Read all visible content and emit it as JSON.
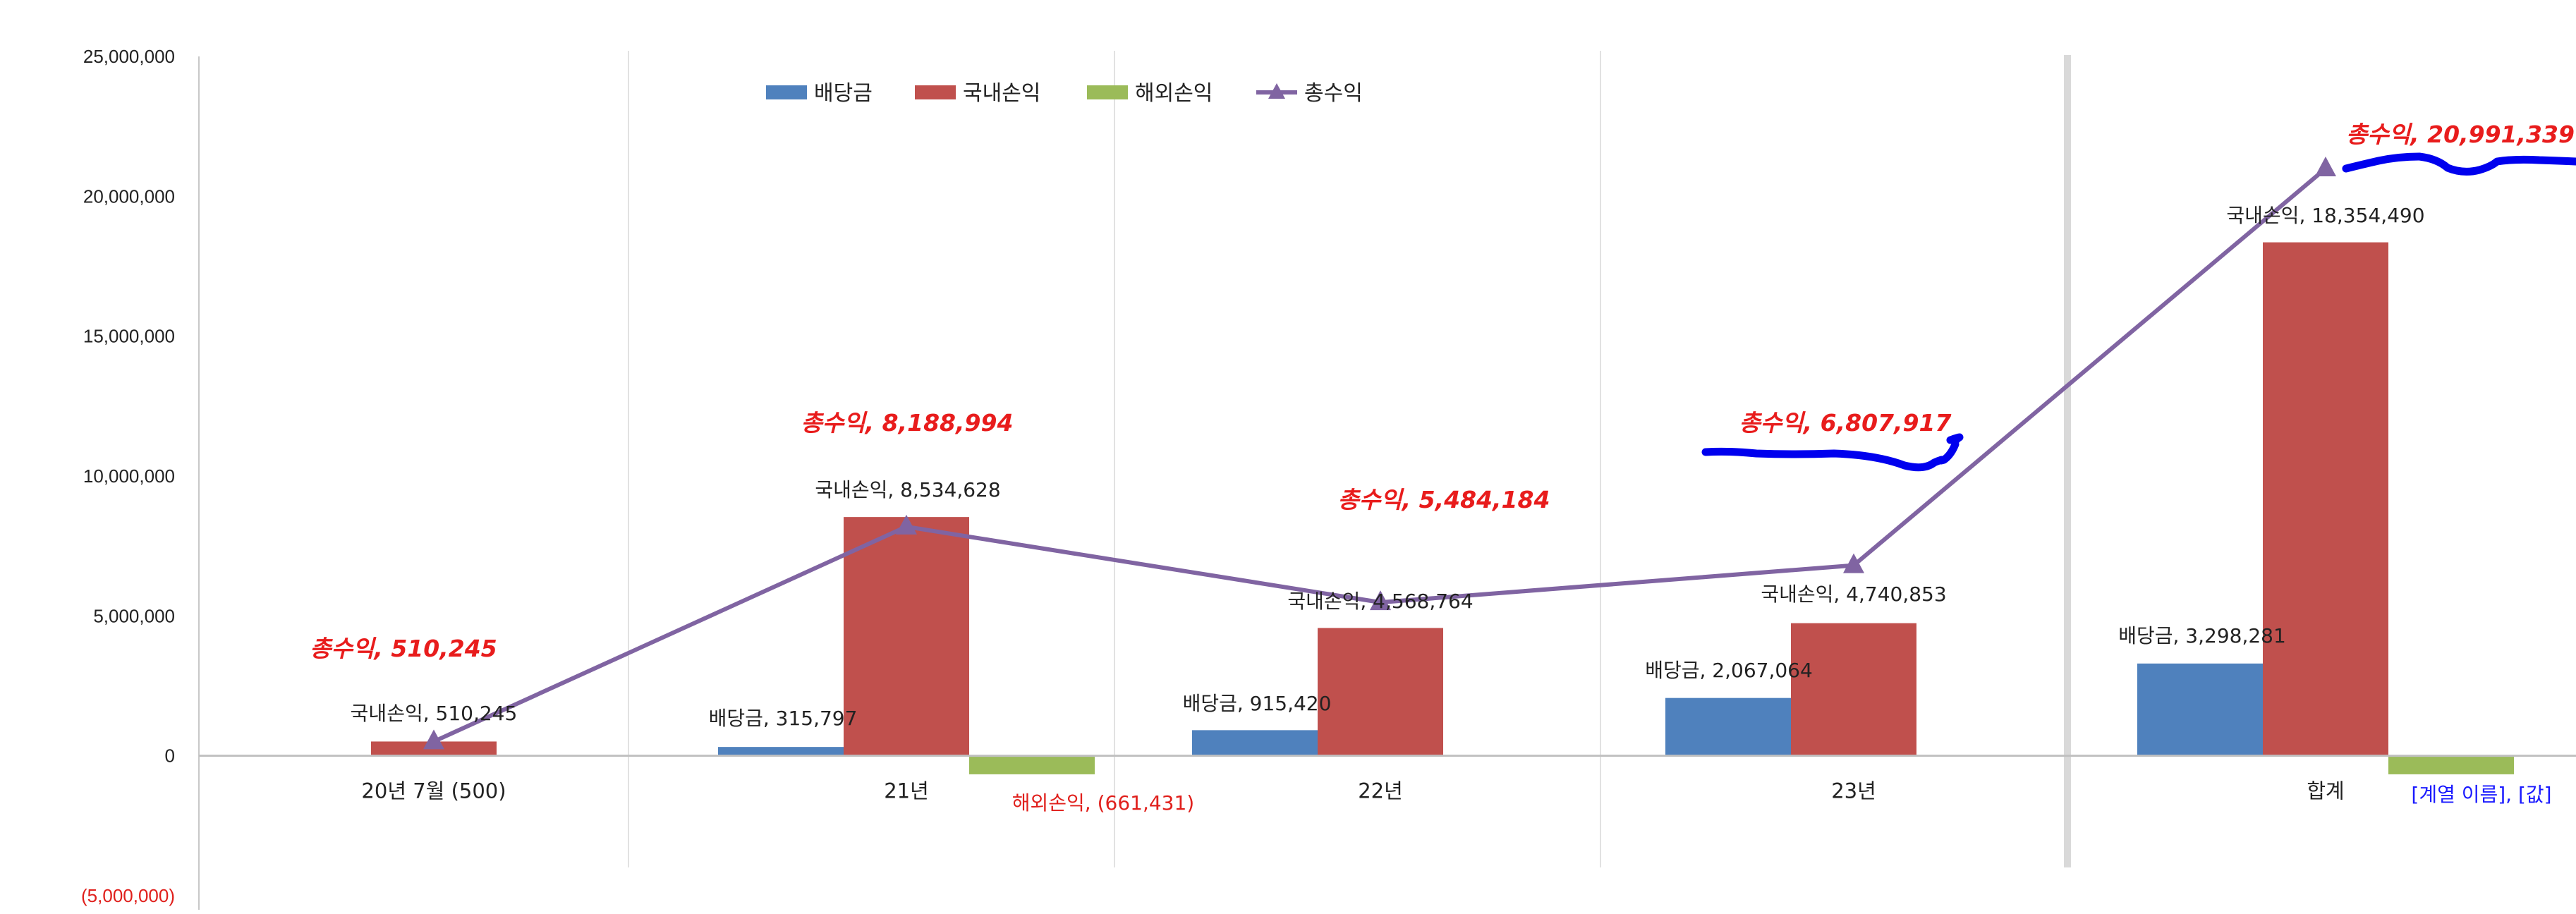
{
  "chart_data": {
    "type": "bar",
    "categories": [
      "20년 7월 (500)",
      "21년",
      "22년",
      "23년",
      "합계"
    ],
    "series": [
      {
        "name": "배당금",
        "type": "bar",
        "color": "#4f81bd",
        "values": [
          0,
          315797,
          915420,
          2067064,
          3298281
        ]
      },
      {
        "name": "국내손익",
        "type": "bar",
        "color": "#c0504d",
        "values": [
          510245,
          8534628,
          4568764,
          4740853,
          18354490
        ]
      },
      {
        "name": "해외손익",
        "type": "bar",
        "color": "#9bbb59",
        "values": [
          0,
          -661431,
          0,
          0,
          -661431
        ]
      },
      {
        "name": "총수익",
        "type": "line",
        "color": "#8064a2",
        "values": [
          510245,
          8188994,
          5484184,
          6807917,
          20991339
        ]
      }
    ],
    "ylim": [
      -5000000,
      25000000
    ],
    "yticks": [
      -5000000,
      0,
      5000000,
      10000000,
      15000000,
      20000000,
      25000000
    ],
    "ytick_labels": [
      "(5,000,000)",
      "0",
      "5,000,000",
      "10,000,000",
      "15,000,000",
      "20,000,000",
      "25,000,000"
    ],
    "legend": [
      "배당금",
      "국내손익",
      "해외손익",
      "총수익"
    ],
    "legend_position": "top-center",
    "title": "",
    "xlabel": "",
    "ylabel": "",
    "grid": "vertical category separators",
    "data_labels": [
      {
        "series": 1,
        "index": 0,
        "text": "국내손익, 510,245"
      },
      {
        "series": 1,
        "index": 1,
        "text": "국내손익, 8,534,628"
      },
      {
        "series": 1,
        "index": 2,
        "text": "국내손익, 4,568,764"
      },
      {
        "series": 1,
        "index": 3,
        "text": "국내손익, 4,740,853"
      },
      {
        "series": 1,
        "index": 4,
        "text": "국내손익, 18,354,490"
      },
      {
        "series": 0,
        "index": 1,
        "text": "배당금, 315,797"
      },
      {
        "series": 0,
        "index": 2,
        "text": "배당금, 915,420"
      },
      {
        "series": 0,
        "index": 3,
        "text": "배당금, 2,067,064"
      },
      {
        "series": 0,
        "index": 4,
        "text": "배당금, 3,298,281"
      },
      {
        "series": 2,
        "index": 1,
        "text": "해외손익, (661,431)"
      },
      {
        "series": 2,
        "index": 4,
        "text": "[계열 이름], [값]"
      },
      {
        "series": 3,
        "index": 0,
        "text": "총수익, 510,245"
      },
      {
        "series": 3,
        "index": 1,
        "text": "총수익, 8,188,994"
      },
      {
        "series": 3,
        "index": 2,
        "text": "총수익, 5,484,184"
      },
      {
        "series": 3,
        "index": 3,
        "text": "총수익, 6,807,917"
      },
      {
        "series": 3,
        "index": 4,
        "text": "총수익, 20,991,339"
      }
    ]
  }
}
